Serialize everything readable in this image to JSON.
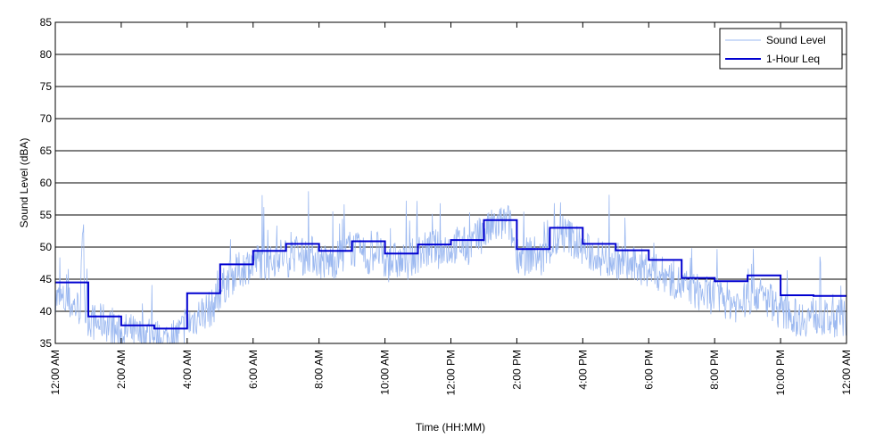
{
  "chart_data": {
    "type": "line",
    "title": "",
    "xlabel": "Time (HH:MM)",
    "ylabel": "Sound Level (dBA)",
    "xlim": [
      0,
      24
    ],
    "ylim": [
      35,
      85
    ],
    "yticks": [
      35,
      40,
      45,
      50,
      55,
      60,
      65,
      70,
      75,
      80,
      85
    ],
    "xticks": [
      {
        "hour": 0,
        "label": "12:00 AM"
      },
      {
        "hour": 2,
        "label": "2:00 AM"
      },
      {
        "hour": 4,
        "label": "4:00 AM"
      },
      {
        "hour": 6,
        "label": "6:00 AM"
      },
      {
        "hour": 8,
        "label": "8:00 AM"
      },
      {
        "hour": 10,
        "label": "10:00 AM"
      },
      {
        "hour": 12,
        "label": "12:00 PM"
      },
      {
        "hour": 14,
        "label": "2:00 PM"
      },
      {
        "hour": 16,
        "label": "4:00 PM"
      },
      {
        "hour": 18,
        "label": "6:00 PM"
      },
      {
        "hour": 20,
        "label": "8:00 PM"
      },
      {
        "hour": 22,
        "label": "10:00 PM"
      },
      {
        "hour": 24,
        "label": "12:00 AM"
      }
    ],
    "grid": "horizontal",
    "legend_position": "top-right",
    "series": [
      {
        "name": "Sound Level",
        "color": "#9bb8f0",
        "style": "thin line, dense minute-level samples",
        "x": [
          0,
          0.25,
          0.5,
          0.75,
          0.85,
          0.9,
          1,
          1.25,
          1.5,
          1.75,
          2,
          2.25,
          2.5,
          2.75,
          3,
          3.25,
          3.5,
          3.75,
          4,
          4.25,
          4.5,
          4.75,
          5,
          5.25,
          5.5,
          5.75,
          6,
          6.25,
          6.5,
          6.75,
          7,
          7.25,
          7.5,
          7.75,
          8,
          8.25,
          8.5,
          8.75,
          9,
          9.25,
          9.5,
          9.75,
          10,
          10.25,
          10.5,
          10.75,
          11,
          11.25,
          11.5,
          11.75,
          12,
          12.25,
          12.5,
          12.75,
          13,
          13.25,
          13.5,
          13.75,
          14,
          14.25,
          14.5,
          14.75,
          15,
          15.25,
          15.5,
          15.75,
          16,
          16.25,
          16.5,
          16.75,
          17,
          17.25,
          17.5,
          17.75,
          18,
          18.25,
          18.5,
          18.75,
          19,
          19.25,
          19.5,
          19.75,
          20,
          20.25,
          20.5,
          20.75,
          21,
          21.25,
          21.5,
          21.75,
          22,
          22.25,
          22.5,
          22.75,
          23,
          23.25,
          23.5,
          23.75,
          24
        ],
        "y": [
          42,
          41.5,
          41,
          40.5,
          53,
          40,
          39,
          38,
          38.5,
          37,
          36.5,
          37,
          36,
          36.5,
          36,
          35.5,
          36,
          36.5,
          38,
          39,
          40,
          40.5,
          43,
          45,
          46,
          47,
          47.5,
          48,
          47,
          49,
          48,
          49,
          48.5,
          49,
          48,
          47.5,
          48,
          49,
          50,
          49,
          48,
          50,
          47,
          48,
          47.5,
          48,
          49,
          49.5,
          50,
          49,
          50,
          50.5,
          50,
          51,
          52,
          53,
          53.5,
          54,
          49,
          48.5,
          49,
          48,
          50,
          51,
          52,
          51,
          49.5,
          49,
          48.5,
          48,
          48,
          47.5,
          47,
          47,
          46.5,
          46,
          45.5,
          45,
          44,
          43.5,
          43,
          42.5,
          42.5,
          42,
          41.5,
          41,
          42,
          43,
          42,
          41.5,
          40,
          39.5,
          39,
          39,
          39.5,
          39,
          38.5,
          39,
          39
        ]
      },
      {
        "name": "1-Hour Leq",
        "color": "#0000d0",
        "style": "thick step line",
        "x": [
          0,
          1,
          2,
          3,
          4,
          5,
          6,
          7,
          8,
          9,
          10,
          11,
          12,
          13,
          14,
          15,
          16,
          17,
          18,
          19,
          20,
          21,
          22,
          23,
          24
        ],
        "y": [
          44.5,
          39.2,
          37.8,
          37.3,
          42.8,
          47.3,
          49.4,
          50.5,
          49.4,
          50.9,
          49.0,
          50.4,
          51.1,
          54.2,
          49.7,
          53.0,
          50.5,
          49.5,
          48.0,
          45.2,
          44.7,
          45.6,
          42.5,
          42.4,
          42.4
        ]
      }
    ]
  }
}
